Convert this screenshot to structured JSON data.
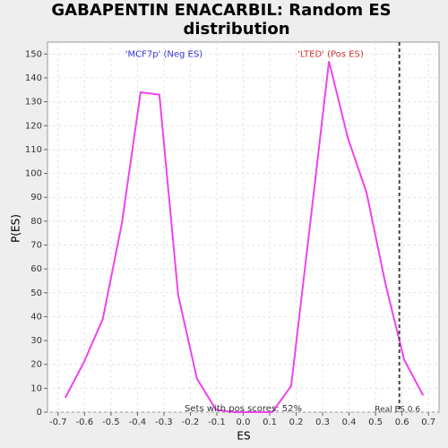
{
  "chart_data": {
    "type": "line",
    "title": [
      "GABAPENTIN ENACARBIL: Random ES",
      "distribution"
    ],
    "x_label": "ES",
    "y_label": "P(ES)",
    "annotations": [
      {
        "text": "'MCF7p' (Neg ES)",
        "x": -0.3,
        "y": 150,
        "color": "#3333cc"
      },
      {
        "text": "'LTED' (Pos ES)",
        "x": 0.33,
        "y": 150,
        "color": "#cc3333"
      },
      {
        "text": "Sets with pos scores: 52%",
        "x": 0,
        "y": 1.5,
        "color": "#333333"
      }
    ],
    "real_es": {
      "value": 0.59,
      "label": "Real ES 0.6"
    },
    "x": [
      -0.673,
      -0.602,
      -0.531,
      -0.459,
      -0.388,
      -0.317,
      -0.246,
      -0.175,
      -0.103,
      -0.032,
      0.039,
      0.11,
      0.181,
      0.253,
      0.324,
      0.395,
      0.466,
      0.537,
      0.608,
      0.68
    ],
    "series": [
      {
        "color": "#ee44ee",
        "values": [
          6,
          21,
          39,
          79,
          134,
          133,
          49,
          14,
          1,
          0,
          0,
          0,
          11,
          79,
          147,
          115,
          92,
          54,
          22,
          7
        ]
      }
    ],
    "xlim": [
      -0.74,
      0.74
    ],
    "xticks": [
      -0.7,
      -0.6,
      -0.5,
      -0.4,
      -0.3,
      -0.2,
      -0.1,
      {
        "value": 0,
        "label": "0.0"
      },
      0.1,
      0.2,
      0.3,
      0.4,
      0.5,
      0.6,
      0.7
    ],
    "ylim": [
      0,
      155
    ],
    "yticks": [
      0,
      10,
      20,
      30,
      40,
      50,
      60,
      70,
      80,
      90,
      100,
      110,
      120,
      130,
      140,
      150
    ],
    "grid": true
  }
}
